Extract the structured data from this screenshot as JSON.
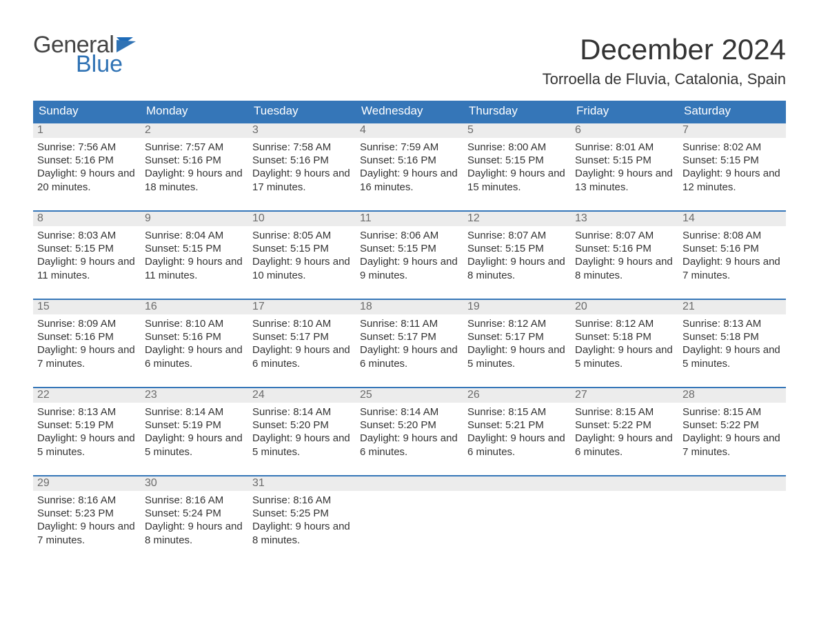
{
  "brand": {
    "line1": "General",
    "line2": "Blue"
  },
  "title": "December 2024",
  "location": "Torroella de Fluvia, Catalonia, Spain",
  "colors": {
    "header_bg": "#3576b8",
    "week_top_border": "#3576b8",
    "daynum_bg": "#ececec",
    "text": "#333333",
    "brand_blue": "#2f72b4"
  },
  "typography": {
    "title_fontsize_pt": 32,
    "location_fontsize_pt": 17,
    "header_fontsize_pt": 13,
    "body_fontsize_pt": 11
  },
  "weekday_labels": [
    "Sunday",
    "Monday",
    "Tuesday",
    "Wednesday",
    "Thursday",
    "Friday",
    "Saturday"
  ],
  "labels": {
    "sunrise": "Sunrise:",
    "sunset": "Sunset:",
    "daylight": "Daylight:"
  },
  "weeks": [
    [
      {
        "day": 1,
        "sunrise": "7:56 AM",
        "sunset": "5:16 PM",
        "daylight": "9 hours and 20 minutes."
      },
      {
        "day": 2,
        "sunrise": "7:57 AM",
        "sunset": "5:16 PM",
        "daylight": "9 hours and 18 minutes."
      },
      {
        "day": 3,
        "sunrise": "7:58 AM",
        "sunset": "5:16 PM",
        "daylight": "9 hours and 17 minutes."
      },
      {
        "day": 4,
        "sunrise": "7:59 AM",
        "sunset": "5:16 PM",
        "daylight": "9 hours and 16 minutes."
      },
      {
        "day": 5,
        "sunrise": "8:00 AM",
        "sunset": "5:15 PM",
        "daylight": "9 hours and 15 minutes."
      },
      {
        "day": 6,
        "sunrise": "8:01 AM",
        "sunset": "5:15 PM",
        "daylight": "9 hours and 13 minutes."
      },
      {
        "day": 7,
        "sunrise": "8:02 AM",
        "sunset": "5:15 PM",
        "daylight": "9 hours and 12 minutes."
      }
    ],
    [
      {
        "day": 8,
        "sunrise": "8:03 AM",
        "sunset": "5:15 PM",
        "daylight": "9 hours and 11 minutes."
      },
      {
        "day": 9,
        "sunrise": "8:04 AM",
        "sunset": "5:15 PM",
        "daylight": "9 hours and 11 minutes."
      },
      {
        "day": 10,
        "sunrise": "8:05 AM",
        "sunset": "5:15 PM",
        "daylight": "9 hours and 10 minutes."
      },
      {
        "day": 11,
        "sunrise": "8:06 AM",
        "sunset": "5:15 PM",
        "daylight": "9 hours and 9 minutes."
      },
      {
        "day": 12,
        "sunrise": "8:07 AM",
        "sunset": "5:15 PM",
        "daylight": "9 hours and 8 minutes."
      },
      {
        "day": 13,
        "sunrise": "8:07 AM",
        "sunset": "5:16 PM",
        "daylight": "9 hours and 8 minutes."
      },
      {
        "day": 14,
        "sunrise": "8:08 AM",
        "sunset": "5:16 PM",
        "daylight": "9 hours and 7 minutes."
      }
    ],
    [
      {
        "day": 15,
        "sunrise": "8:09 AM",
        "sunset": "5:16 PM",
        "daylight": "9 hours and 7 minutes."
      },
      {
        "day": 16,
        "sunrise": "8:10 AM",
        "sunset": "5:16 PM",
        "daylight": "9 hours and 6 minutes."
      },
      {
        "day": 17,
        "sunrise": "8:10 AM",
        "sunset": "5:17 PM",
        "daylight": "9 hours and 6 minutes."
      },
      {
        "day": 18,
        "sunrise": "8:11 AM",
        "sunset": "5:17 PM",
        "daylight": "9 hours and 6 minutes."
      },
      {
        "day": 19,
        "sunrise": "8:12 AM",
        "sunset": "5:17 PM",
        "daylight": "9 hours and 5 minutes."
      },
      {
        "day": 20,
        "sunrise": "8:12 AM",
        "sunset": "5:18 PM",
        "daylight": "9 hours and 5 minutes."
      },
      {
        "day": 21,
        "sunrise": "8:13 AM",
        "sunset": "5:18 PM",
        "daylight": "9 hours and 5 minutes."
      }
    ],
    [
      {
        "day": 22,
        "sunrise": "8:13 AM",
        "sunset": "5:19 PM",
        "daylight": "9 hours and 5 minutes."
      },
      {
        "day": 23,
        "sunrise": "8:14 AM",
        "sunset": "5:19 PM",
        "daylight": "9 hours and 5 minutes."
      },
      {
        "day": 24,
        "sunrise": "8:14 AM",
        "sunset": "5:20 PM",
        "daylight": "9 hours and 5 minutes."
      },
      {
        "day": 25,
        "sunrise": "8:14 AM",
        "sunset": "5:20 PM",
        "daylight": "9 hours and 6 minutes."
      },
      {
        "day": 26,
        "sunrise": "8:15 AM",
        "sunset": "5:21 PM",
        "daylight": "9 hours and 6 minutes."
      },
      {
        "day": 27,
        "sunrise": "8:15 AM",
        "sunset": "5:22 PM",
        "daylight": "9 hours and 6 minutes."
      },
      {
        "day": 28,
        "sunrise": "8:15 AM",
        "sunset": "5:22 PM",
        "daylight": "9 hours and 7 minutes."
      }
    ],
    [
      {
        "day": 29,
        "sunrise": "8:16 AM",
        "sunset": "5:23 PM",
        "daylight": "9 hours and 7 minutes."
      },
      {
        "day": 30,
        "sunrise": "8:16 AM",
        "sunset": "5:24 PM",
        "daylight": "9 hours and 8 minutes."
      },
      {
        "day": 31,
        "sunrise": "8:16 AM",
        "sunset": "5:25 PM",
        "daylight": "9 hours and 8 minutes."
      },
      null,
      null,
      null,
      null
    ]
  ]
}
